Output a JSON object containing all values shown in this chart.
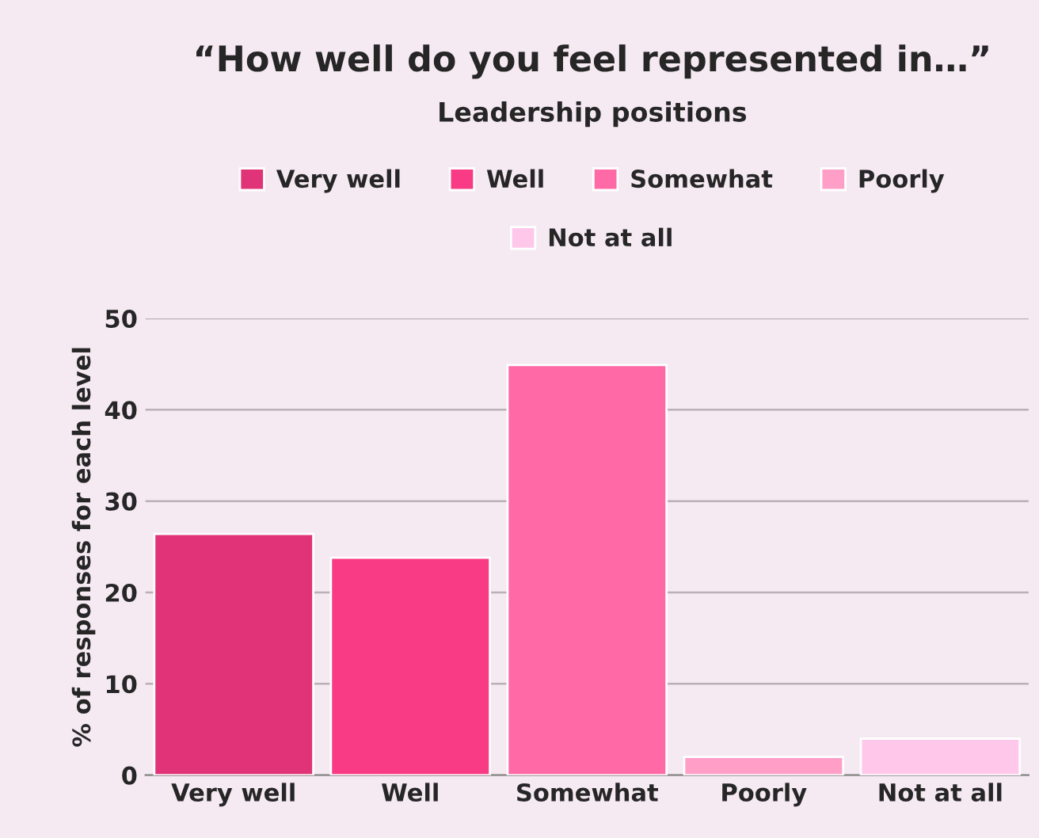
{
  "chart_data": {
    "type": "bar",
    "title": "“How well do you feel represented in…”",
    "subtitle": "Leadership positions",
    "ylabel": "% of responses for each level",
    "categories": [
      "Very well",
      "Well",
      "Somewhat",
      "Poorly",
      "Not at all"
    ],
    "series": [
      {
        "name": "Very well",
        "color": "#e13377",
        "values": [
          26.4,
          null,
          null,
          null,
          null
        ]
      },
      {
        "name": "Well",
        "color": "#f83b84",
        "values": [
          null,
          23.8,
          null,
          null,
          null
        ]
      },
      {
        "name": "Somewhat",
        "color": "#ff69a5",
        "values": [
          null,
          null,
          44.9,
          null,
          null
        ]
      },
      {
        "name": "Poorly",
        "color": "#ff9fc8",
        "values": [
          null,
          null,
          null,
          2.0,
          null
        ]
      },
      {
        "name": "Not at all",
        "color": "#ffc8ea",
        "values": [
          null,
          null,
          null,
          null,
          4.0
        ]
      }
    ],
    "ylim": [
      0,
      50
    ],
    "yticks": [
      0,
      10,
      20,
      30,
      40,
      50
    ],
    "grid": "y",
    "legend": "top"
  }
}
